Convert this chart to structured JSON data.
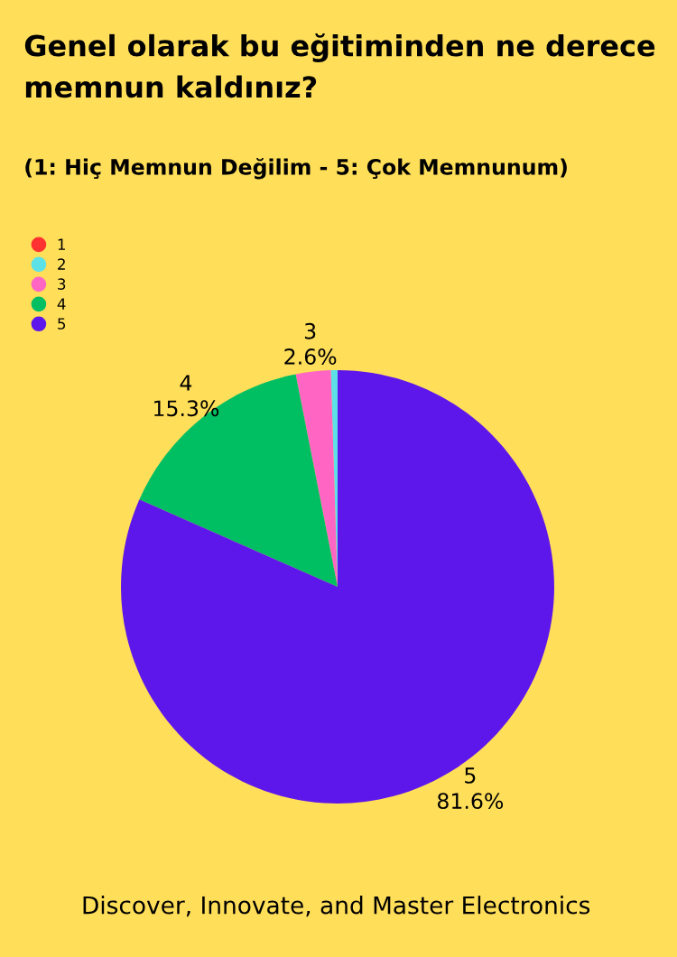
{
  "chart_data": {
    "type": "pie",
    "title": "Genel olarak bu eğitiminden ne derece memnun kaldınız?",
    "subtitle": "(1: Hiç Memnun Değilim - 5: Çok Memnunum)",
    "categories": [
      "1",
      "2",
      "3",
      "4",
      "5"
    ],
    "values": [
      0,
      0.5,
      2.6,
      15.3,
      81.6
    ],
    "colors": [
      "#ff3131",
      "#5ce1e6",
      "#ff66c4",
      "#00bf63",
      "#5e17eb"
    ],
    "value_labels": [
      null,
      null,
      "2.6%",
      "15.3%",
      "81.6%"
    ],
    "legend": "top left",
    "annotations": [
      "Discover, Innovate, and Master Electronics"
    ]
  }
}
